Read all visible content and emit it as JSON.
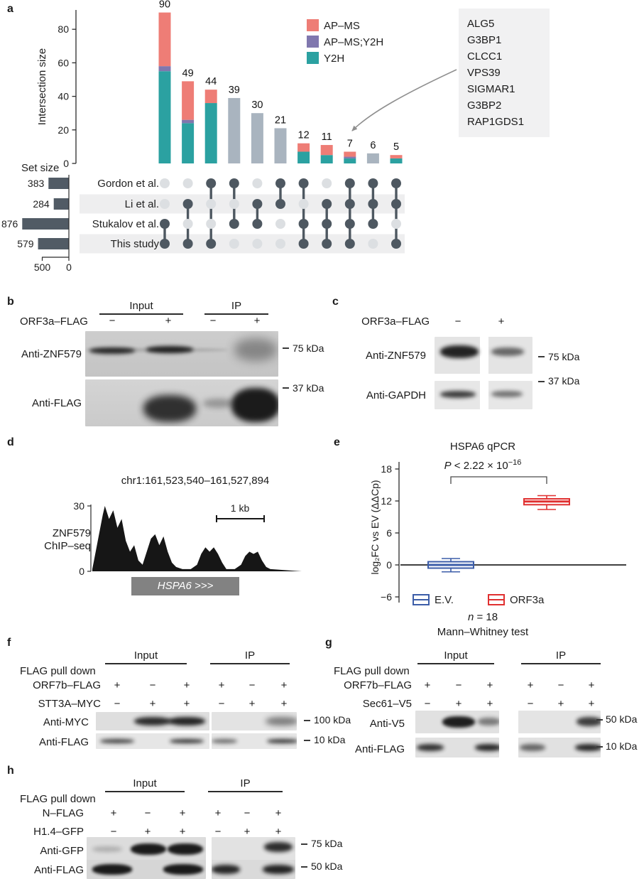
{
  "panel_labels": {
    "a": "a",
    "b": "b",
    "c": "c",
    "d": "d",
    "e": "e",
    "f": "f",
    "g": "g",
    "h": "h"
  },
  "chart_data": [
    {
      "name": "upset",
      "type": "bar",
      "subtype": "upset",
      "ylabel": "Intersection size",
      "ylim": [
        0,
        90
      ],
      "yticks": [
        0,
        20,
        40,
        60,
        80
      ],
      "legend": [
        {
          "label": "AP–MS",
          "color": "#ee7d76"
        },
        {
          "label": "AP–MS;Y2H",
          "color": "#8077ae"
        },
        {
          "label": "Y2H",
          "color": "#2ba1a1"
        }
      ],
      "other_color": "#a9b4bf",
      "dot_active_color": "#4e5861",
      "dot_inactive_color": "#dcdfe2",
      "set_size_title": "Set size",
      "set_axis_ticks": [
        500,
        0
      ],
      "sets": [
        {
          "name": "Gordon et al.",
          "size": 383
        },
        {
          "name": "Li et al.",
          "size": 284
        },
        {
          "name": "Stukalov et al.",
          "size": 876
        },
        {
          "name": "This study",
          "size": 579
        }
      ],
      "intersections": [
        {
          "size": 90,
          "members": [
            0,
            0,
            1,
            1
          ],
          "segments": [
            55,
            3,
            32
          ]
        },
        {
          "size": 49,
          "members": [
            0,
            1,
            0,
            1
          ],
          "segments": [
            24,
            2,
            23
          ]
        },
        {
          "size": 44,
          "members": [
            1,
            0,
            0,
            1
          ],
          "segments": [
            36,
            0,
            8
          ]
        },
        {
          "size": 39,
          "members": [
            1,
            0,
            1,
            0
          ],
          "segments": null
        },
        {
          "size": 30,
          "members": [
            0,
            1,
            1,
            0
          ],
          "segments": null
        },
        {
          "size": 21,
          "members": [
            1,
            1,
            0,
            0
          ],
          "segments": null
        },
        {
          "size": 12,
          "members": [
            1,
            0,
            1,
            1
          ],
          "segments": [
            7,
            0,
            5
          ]
        },
        {
          "size": 11,
          "members": [
            0,
            1,
            1,
            1
          ],
          "segments": [
            5,
            0,
            6
          ]
        },
        {
          "size": 7,
          "members": [
            1,
            1,
            1,
            1
          ],
          "segments": [
            3,
            1,
            3
          ]
        },
        {
          "size": 6,
          "members": [
            1,
            1,
            1,
            0
          ],
          "segments": null
        },
        {
          "size": 5,
          "members": [
            1,
            1,
            0,
            1
          ],
          "segments": [
            3,
            0,
            2
          ]
        }
      ],
      "callout": {
        "genes": [
          "ALG5",
          "G3BP1",
          "CLCC1",
          "VPS39",
          "SIGMAR1",
          "G3BP2",
          "RAP1GDS1"
        ],
        "points_to_size": 7
      }
    },
    {
      "name": "chipseq",
      "type": "area",
      "title": "chr1:161,523,540–161,527,894",
      "track_label": [
        "ZNF579",
        "ChIP–seq"
      ],
      "ylim": [
        0,
        30
      ],
      "yticks": [
        30,
        0
      ],
      "scale_bar": "1 kb",
      "gene": "HSPA6 >>>",
      "profile": [
        [
          0,
          1
        ],
        [
          1,
          6
        ],
        [
          3,
          16
        ],
        [
          5,
          26
        ],
        [
          6,
          30
        ],
        [
          8,
          24
        ],
        [
          10,
          28
        ],
        [
          12,
          20
        ],
        [
          14,
          24
        ],
        [
          16,
          14
        ],
        [
          18,
          9
        ],
        [
          20,
          12
        ],
        [
          22,
          5
        ],
        [
          24,
          3
        ],
        [
          26,
          9
        ],
        [
          28,
          15
        ],
        [
          30,
          17
        ],
        [
          32,
          12
        ],
        [
          34,
          16
        ],
        [
          36,
          9
        ],
        [
          38,
          4
        ],
        [
          40,
          2
        ],
        [
          43,
          1
        ],
        [
          47,
          1
        ],
        [
          50,
          3
        ],
        [
          52,
          8
        ],
        [
          54,
          11
        ],
        [
          56,
          9
        ],
        [
          58,
          11
        ],
        [
          60,
          8
        ],
        [
          62,
          4
        ],
        [
          64,
          1
        ],
        [
          68,
          1
        ],
        [
          71,
          3
        ],
        [
          73,
          7
        ],
        [
          75,
          9
        ],
        [
          77,
          8
        ],
        [
          79,
          9
        ],
        [
          81,
          5
        ],
        [
          83,
          2
        ],
        [
          85,
          1
        ],
        [
          100,
          0
        ]
      ]
    },
    {
      "name": "qpcr",
      "type": "boxplot",
      "title": "HSPA6 qPCR",
      "p_label": {
        "italic": "P",
        "rest": " < 2.22 × 10",
        "exponent": "−16"
      },
      "ylabel": "log₂FC vs EV (ΔΔCp)",
      "yticks": [
        18,
        12,
        6,
        0,
        -6
      ],
      "groups": [
        {
          "name": "E.V.",
          "color": "#3c5da8",
          "stats": {
            "whisker_low": -1.3,
            "q1": -0.6,
            "median": 0,
            "q3": 0.6,
            "whisker_high": 1.2
          }
        },
        {
          "name": "ORF3a",
          "color": "#e03030",
          "stats": {
            "whisker_low": 10.4,
            "q1": 11.3,
            "median": 11.9,
            "q3": 12.4,
            "whisker_high": 13.0
          }
        }
      ],
      "n_label": {
        "italic": "n",
        "rest": " = 18"
      },
      "test_label": "Mann–Whitney test"
    }
  ],
  "panel_b": {
    "construct": "ORF3a–FLAG",
    "group_input": "Input",
    "group_ip": "IP",
    "signs": [
      "−",
      "+",
      "−",
      "+"
    ],
    "rows": [
      {
        "antibody": "Anti-ZNF579",
        "marker": "75 kDa"
      },
      {
        "antibody": "Anti-FLAG",
        "marker": "37 kDa"
      }
    ]
  },
  "panel_c": {
    "construct": "ORF3a–FLAG",
    "signs": [
      "−",
      "+"
    ],
    "rows": [
      {
        "antibody": "Anti-ZNF579",
        "marker": "75 kDa"
      },
      {
        "antibody": "Anti-GAPDH",
        "marker": "37 kDa"
      }
    ]
  },
  "panel_f": {
    "pulldown": "FLAG pull down",
    "group_input": "Input",
    "group_ip": "IP",
    "construct_rows": [
      {
        "name": "ORF7b–FLAG",
        "signs": [
          "+",
          "−",
          "+",
          "+",
          "−",
          "+"
        ]
      },
      {
        "name": "STT3A–MYC",
        "signs": [
          "−",
          "+",
          "+",
          "−",
          "+",
          "+"
        ]
      }
    ],
    "blot_rows": [
      {
        "antibody": "Anti-MYC",
        "marker": "100 kDa"
      },
      {
        "antibody": "Anti-FLAG",
        "marker": "10 kDa"
      }
    ]
  },
  "panel_g": {
    "pulldown": "FLAG pull down",
    "group_input": "Input",
    "group_ip": "IP",
    "construct_rows": [
      {
        "name": "ORF7b–FLAG",
        "signs": [
          "+",
          "−",
          "+",
          "+",
          "−",
          "+"
        ]
      },
      {
        "name": "Sec61–V5",
        "signs": [
          "−",
          "+",
          "+",
          "−",
          "+",
          "+"
        ]
      }
    ],
    "blot_rows": [
      {
        "antibody": "Anti-V5",
        "marker": "50 kDa"
      },
      {
        "antibody": "Anti-FLAG",
        "marker": "10 kDa"
      }
    ]
  },
  "panel_h": {
    "pulldown": "FLAG pull down",
    "group_input": "Input",
    "group_ip": "IP",
    "construct_rows": [
      {
        "name": "N–FLAG",
        "signs": [
          "+",
          "−",
          "+",
          "+",
          "−",
          "+"
        ]
      },
      {
        "name": "H1.4–GFP",
        "signs": [
          "−",
          "+",
          "+",
          "−",
          "+",
          "+"
        ]
      }
    ],
    "blot_rows": [
      {
        "antibody": "Anti-GFP",
        "marker": "75 kDa"
      },
      {
        "antibody": "Anti-FLAG",
        "marker": "50 kDa"
      }
    ]
  }
}
